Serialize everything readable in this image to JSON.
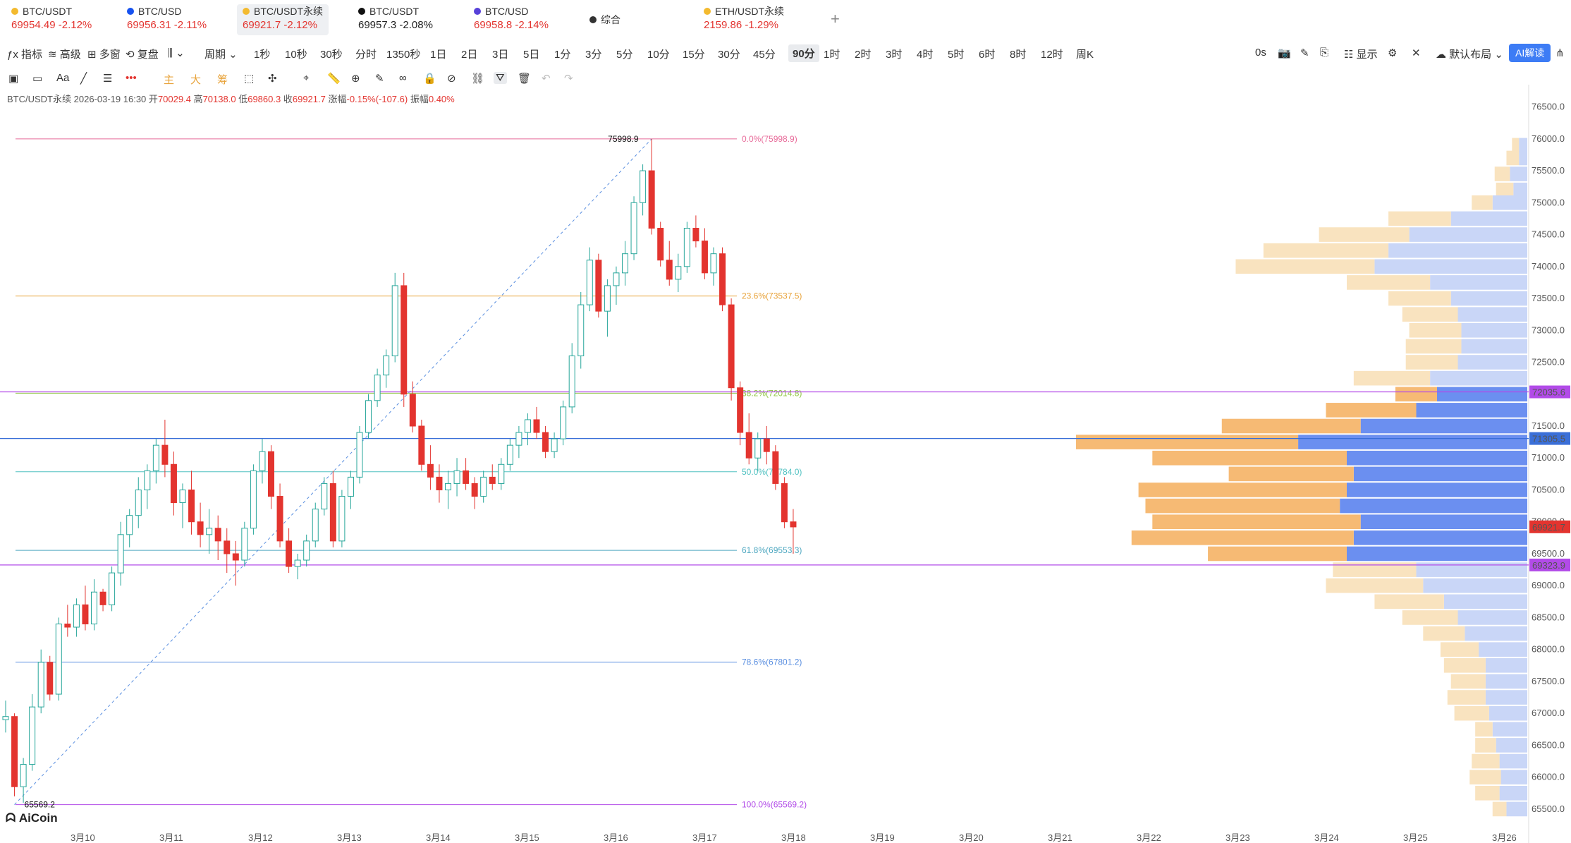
{
  "tabs": [
    {
      "symbol": "BTC/USDT",
      "price": "69954.49",
      "change": "-2.12%",
      "icon": "binance-icon",
      "icon_color": "#f3ba2f",
      "active": false,
      "price_color": "red"
    },
    {
      "symbol": "BTC/USD",
      "price": "69956.31",
      "change": "-2.11%",
      "icon": "coinbase-icon",
      "icon_color": "#1652f0",
      "active": false,
      "price_color": "red"
    },
    {
      "symbol": "BTC/USDT永续",
      "price": "69921.7",
      "change": "-2.12%",
      "icon": "binance-icon",
      "icon_color": "#f3ba2f",
      "active": true,
      "price_color": "red"
    },
    {
      "symbol": "BTC/USDT",
      "price": "69957.3",
      "change": "-2.08%",
      "icon": "okx-icon",
      "icon_color": "#111111",
      "active": false,
      "price_color": "dark"
    },
    {
      "symbol": "BTC/USD",
      "price": "69958.8",
      "change": "-2.14%",
      "icon": "kraken-icon",
      "icon_color": "#5741d9",
      "active": false,
      "price_color": "red"
    },
    {
      "symbol": "综合",
      "price": "",
      "change": "",
      "icon": "grid-icon",
      "icon_color": "#333333",
      "active": false,
      "price_color": "red"
    },
    {
      "symbol": "ETH/USDT永续",
      "price": "2159.86",
      "change": "-1.29%",
      "icon": "binance-icon",
      "icon_color": "#f3ba2f",
      "active": false,
      "price_color": "red"
    }
  ],
  "toolbar": {
    "indicators": "指标",
    "advanced": "高级",
    "multi_window": "多窗",
    "replay": "复盘",
    "chart_type_icon": "bar-chart-icon",
    "period": "周期",
    "periods": [
      "1秒",
      "10秒",
      "30秒",
      "分时",
      "1350秒",
      "1日",
      "2日",
      "3日",
      "5日",
      "1分",
      "3分",
      "5分",
      "10分",
      "15分",
      "30分",
      "45分",
      "90分",
      "1时",
      "2时",
      "3时",
      "4时",
      "5时",
      "6时",
      "8时",
      "12时",
      "周K"
    ],
    "selected_period": "90分",
    "countdown": "0s",
    "display": "显示",
    "layout": "默认布局",
    "ai": "AI解读"
  },
  "drawing_tools": {
    "main": "主",
    "big": "大",
    "chips": "筹"
  },
  "info": {
    "symbol": "BTC/USDT永续",
    "datetime": "2026-03-19 16:30",
    "open_label": "开",
    "open": "70029.4",
    "high_label": "高",
    "high": "70138.0",
    "low_label": "低",
    "low": "69860.3",
    "close_label": "收",
    "close": "69921.7",
    "change_label": "涨幅",
    "change": "-0.15%(-107.6)",
    "amp_label": "振幅",
    "amp": "0.40%"
  },
  "chart_data": {
    "type": "candlestick",
    "y_ticks": [
      65500,
      66000,
      66500,
      67000,
      67500,
      68000,
      68500,
      69000,
      69500,
      70000,
      70500,
      71000,
      71500,
      72000,
      72500,
      73000,
      73500,
      74000,
      74500,
      75000,
      75500,
      76000,
      76500
    ],
    "ylim": [
      65300,
      76650
    ],
    "x_ticks": [
      "3月10",
      "3月11",
      "3月12",
      "3月13",
      "3月14",
      "3月15",
      "3月16",
      "3月17",
      "3月18",
      "3月19",
      "3月20",
      "3月21",
      "3月22",
      "3月23",
      "3月24",
      "3月25",
      "3月26"
    ],
    "price_markers": [
      {
        "value": 72035.6,
        "label": "72035.6",
        "color": "#b24be8"
      },
      {
        "value": 71305.5,
        "label": "71305.5",
        "color": "#3a6fd8"
      },
      {
        "value": 69921.7,
        "label": "69921.7",
        "color": "#e3342f"
      },
      {
        "value": 69323.9,
        "label": "69323.9",
        "color": "#b24be8"
      }
    ],
    "fibonacci": [
      {
        "level": "0.0%",
        "value": 75998.9,
        "color": "#e86b9a"
      },
      {
        "level": "23.6%",
        "value": 73537.5,
        "color": "#e8a33a"
      },
      {
        "level": "38.2%",
        "value": 72014.8,
        "color": "#8dc63f"
      },
      {
        "level": "50.0%",
        "value": 70784.0,
        "color": "#4fc1c1"
      },
      {
        "level": "61.8%",
        "value": 69553.3,
        "color": "#4fa8c1"
      },
      {
        "level": "78.6%",
        "value": 67801.2,
        "color": "#5a8fe0"
      },
      {
        "level": "100.0%",
        "value": 65569.2,
        "color": "#b24be8"
      }
    ],
    "annotations": {
      "high": "75998.9",
      "low": "65569.2"
    },
    "candles": [
      [
        66900,
        67200,
        66700,
        66950
      ],
      [
        66950,
        67000,
        65700,
        65850
      ],
      [
        65850,
        66300,
        65600,
        66200
      ],
      [
        66200,
        67300,
        66100,
        67100
      ],
      [
        67100,
        68000,
        67000,
        67800
      ],
      [
        67800,
        67900,
        67200,
        67300
      ],
      [
        67300,
        68500,
        67200,
        68400
      ],
      [
        68400,
        68700,
        68200,
        68350
      ],
      [
        68350,
        68800,
        68200,
        68700
      ],
      [
        68700,
        69000,
        68300,
        68400
      ],
      [
        68400,
        69100,
        68300,
        68900
      ],
      [
        68900,
        68950,
        68600,
        68700
      ],
      [
        68700,
        69300,
        68600,
        69200
      ],
      [
        69200,
        70000,
        69000,
        69800
      ],
      [
        69800,
        70200,
        69600,
        70100
      ],
      [
        70100,
        70700,
        69900,
        70500
      ],
      [
        70500,
        70900,
        70200,
        70800
      ],
      [
        70800,
        71300,
        70600,
        71200
      ],
      [
        71200,
        71600,
        70700,
        70900
      ],
      [
        70900,
        71100,
        70100,
        70300
      ],
      [
        70300,
        70600,
        69900,
        70500
      ],
      [
        70500,
        70800,
        69800,
        70000
      ],
      [
        70000,
        70300,
        69600,
        69800
      ],
      [
        69800,
        70200,
        69500,
        69900
      ],
      [
        69900,
        70100,
        69400,
        69700
      ],
      [
        69700,
        69900,
        69200,
        69500
      ],
      [
        69500,
        69700,
        69000,
        69400
      ],
      [
        69400,
        70000,
        69300,
        69900
      ],
      [
        69900,
        70900,
        69800,
        70800
      ],
      [
        70800,
        71300,
        70600,
        71100
      ],
      [
        71100,
        71200,
        70200,
        70400
      ],
      [
        70400,
        70600,
        69600,
        69700
      ],
      [
        69700,
        69900,
        69200,
        69300
      ],
      [
        69300,
        69500,
        69100,
        69400
      ],
      [
        69400,
        69800,
        69300,
        69700
      ],
      [
        69700,
        70300,
        69600,
        70200
      ],
      [
        70200,
        70700,
        70100,
        70600
      ],
      [
        70600,
        70800,
        69600,
        69700
      ],
      [
        69700,
        70500,
        69600,
        70400
      ],
      [
        70400,
        70800,
        70200,
        70700
      ],
      [
        70700,
        71500,
        70600,
        71400
      ],
      [
        71400,
        72000,
        71300,
        71900
      ],
      [
        71900,
        72400,
        71800,
        72300
      ],
      [
        72300,
        72700,
        72100,
        72600
      ],
      [
        72600,
        73900,
        72500,
        73700
      ],
      [
        73700,
        73900,
        71800,
        72000
      ],
      [
        72000,
        72200,
        71400,
        71500
      ],
      [
        71500,
        71600,
        70800,
        70900
      ],
      [
        70900,
        71200,
        70500,
        70700
      ],
      [
        70700,
        70900,
        70300,
        70500
      ],
      [
        70500,
        70800,
        70200,
        70600
      ],
      [
        70600,
        71000,
        70400,
        70800
      ],
      [
        70800,
        71000,
        70500,
        70600
      ],
      [
        70600,
        70700,
        70200,
        70400
      ],
      [
        70400,
        70800,
        70300,
        70700
      ],
      [
        70700,
        70900,
        70500,
        70600
      ],
      [
        70600,
        71000,
        70500,
        70900
      ],
      [
        70900,
        71300,
        70800,
        71200
      ],
      [
        71200,
        71500,
        71000,
        71400
      ],
      [
        71400,
        71700,
        71200,
        71600
      ],
      [
        71600,
        71800,
        71300,
        71400
      ],
      [
        71400,
        71500,
        71000,
        71100
      ],
      [
        71100,
        71400,
        71000,
        71300
      ],
      [
        71300,
        71900,
        71200,
        71800
      ],
      [
        71800,
        72800,
        71700,
        72600
      ],
      [
        72600,
        73600,
        72400,
        73400
      ],
      [
        73400,
        74300,
        73300,
        74100
      ],
      [
        74100,
        74200,
        73200,
        73300
      ],
      [
        73300,
        73800,
        72900,
        73700
      ],
      [
        73700,
        74000,
        73400,
        73900
      ],
      [
        73900,
        74400,
        73700,
        74200
      ],
      [
        74200,
        75100,
        74100,
        75000
      ],
      [
        75000,
        75600,
        74800,
        75500
      ],
      [
        75500,
        76000,
        74500,
        74600
      ],
      [
        74600,
        74700,
        74000,
        74100
      ],
      [
        74100,
        74400,
        73700,
        73800
      ],
      [
        73800,
        74200,
        73600,
        74000
      ],
      [
        74000,
        74700,
        73900,
        74600
      ],
      [
        74600,
        74800,
        74300,
        74400
      ],
      [
        74400,
        74600,
        73800,
        73900
      ],
      [
        73900,
        74300,
        73700,
        74200
      ],
      [
        74200,
        74300,
        73300,
        73400
      ],
      [
        73400,
        73500,
        71900,
        72100
      ],
      [
        72100,
        72200,
        71200,
        71400
      ],
      [
        71400,
        71700,
        70900,
        71000
      ],
      [
        71000,
        71400,
        70800,
        71300
      ],
      [
        71300,
        71500,
        70900,
        71100
      ],
      [
        71100,
        71200,
        70500,
        70600
      ],
      [
        70600,
        70700,
        69900,
        70000
      ],
      [
        70000,
        70200,
        69500,
        69920
      ]
    ]
  },
  "volume_profile": [
    {
      "price": 75900,
      "a": 10,
      "b": 12
    },
    {
      "price": 75700,
      "a": 18,
      "b": 12
    },
    {
      "price": 75450,
      "a": 22,
      "b": 25
    },
    {
      "price": 75200,
      "a": 25,
      "b": 20
    },
    {
      "price": 75000,
      "a": 30,
      "b": 50
    },
    {
      "price": 74750,
      "a": 90,
      "b": 110
    },
    {
      "price": 74500,
      "a": 130,
      "b": 170
    },
    {
      "price": 74250,
      "a": 180,
      "b": 200
    },
    {
      "price": 74000,
      "a": 200,
      "b": 220
    },
    {
      "price": 73750,
      "a": 120,
      "b": 140
    },
    {
      "price": 73500,
      "a": 90,
      "b": 110
    },
    {
      "price": 73250,
      "a": 80,
      "b": 100
    },
    {
      "price": 73000,
      "a": 75,
      "b": 95
    },
    {
      "price": 72750,
      "a": 80,
      "b": 95
    },
    {
      "price": 72500,
      "a": 75,
      "b": 100
    },
    {
      "price": 72250,
      "a": 110,
      "b": 140
    },
    {
      "price": 72000,
      "a": 60,
      "b": 130
    },
    {
      "price": 71750,
      "a": 130,
      "b": 160
    },
    {
      "price": 71500,
      "a": 200,
      "b": 240
    },
    {
      "price": 71250,
      "a": 320,
      "b": 330
    },
    {
      "price": 71000,
      "a": 280,
      "b": 260
    },
    {
      "price": 70750,
      "a": 180,
      "b": 250
    },
    {
      "price": 70500,
      "a": 300,
      "b": 260
    },
    {
      "price": 70250,
      "a": 280,
      "b": 270
    },
    {
      "price": 70000,
      "a": 300,
      "b": 240
    },
    {
      "price": 69750,
      "a": 320,
      "b": 250
    },
    {
      "price": 69500,
      "a": 200,
      "b": 260
    },
    {
      "price": 69250,
      "a": 120,
      "b": 160
    },
    {
      "price": 69000,
      "a": 140,
      "b": 150
    },
    {
      "price": 68750,
      "a": 100,
      "b": 120
    },
    {
      "price": 68500,
      "a": 80,
      "b": 100
    },
    {
      "price": 68250,
      "a": 60,
      "b": 90
    },
    {
      "price": 68000,
      "a": 55,
      "b": 70
    },
    {
      "price": 67750,
      "a": 60,
      "b": 60
    },
    {
      "price": 67500,
      "a": 50,
      "b": 60
    },
    {
      "price": 67250,
      "a": 55,
      "b": 60
    },
    {
      "price": 67000,
      "a": 50,
      "b": 55
    },
    {
      "price": 66750,
      "a": 25,
      "b": 50
    },
    {
      "price": 66500,
      "a": 30,
      "b": 45
    },
    {
      "price": 66250,
      "a": 40,
      "b": 40
    },
    {
      "price": 66000,
      "a": 45,
      "b": 38
    },
    {
      "price": 65750,
      "a": 35,
      "b": 40
    },
    {
      "price": 65500,
      "a": 20,
      "b": 30
    }
  ],
  "logo": "AiCoin",
  "colors": {
    "up": "#26a69a",
    "down": "#e3342f",
    "vp_a": "#f6ba74",
    "vp_a_light": "#f9e3bf",
    "vp_b": "#6b8ff0",
    "vp_b_light": "#c9d6f7"
  }
}
